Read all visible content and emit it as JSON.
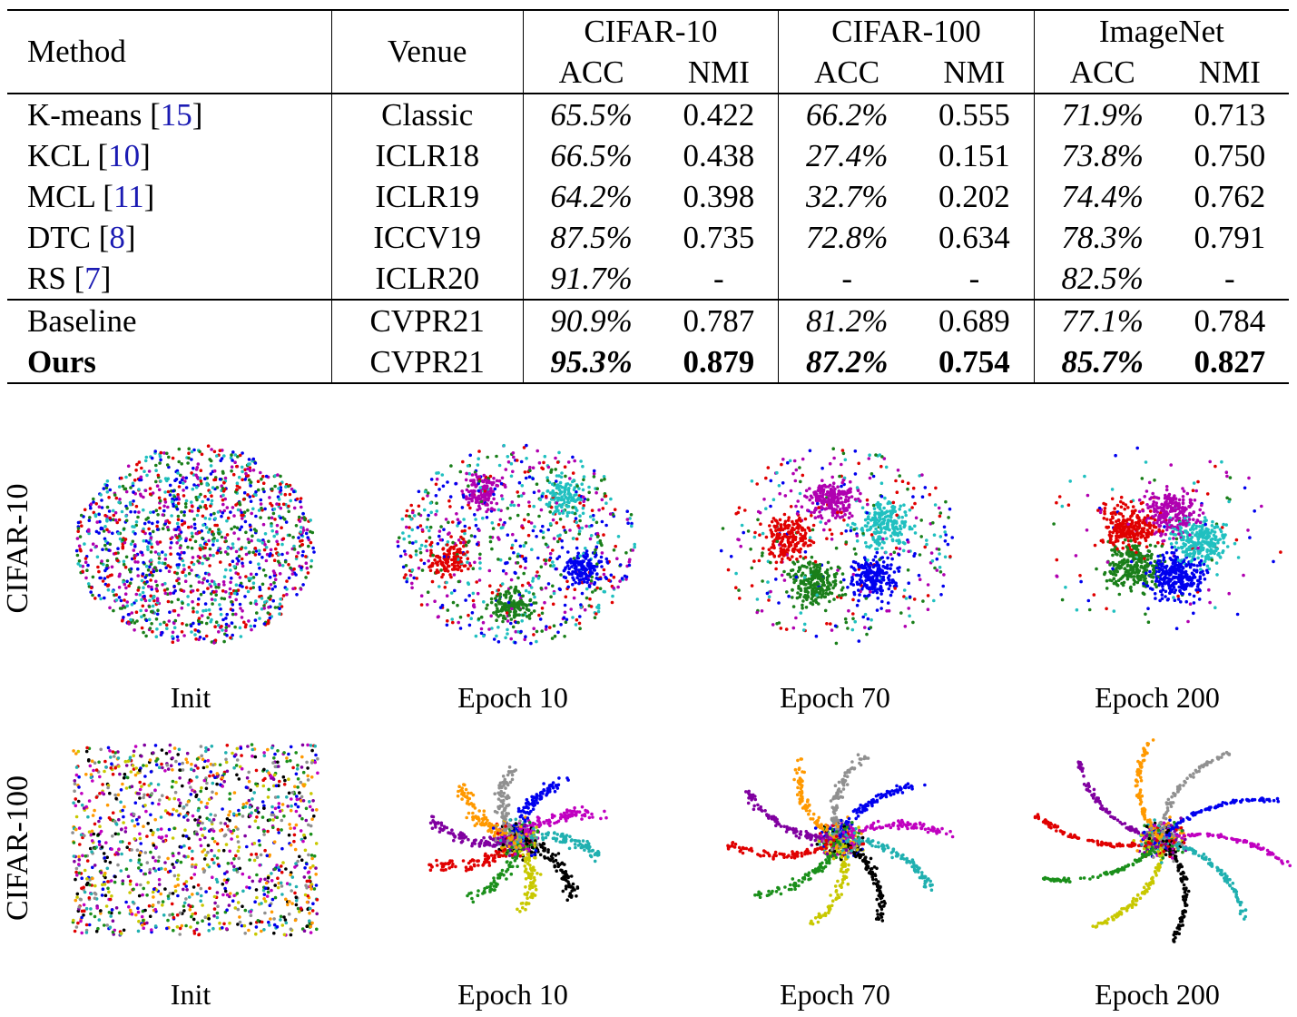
{
  "table": {
    "headers": {
      "method": "Method",
      "venue": "Venue",
      "datasets": [
        "CIFAR-10",
        "CIFAR-100",
        "ImageNet"
      ],
      "metrics": [
        "ACC",
        "NMI",
        "ACC",
        "NMI",
        "ACC",
        "NMI"
      ]
    },
    "rows": [
      {
        "name": "K-means",
        "cite": "15",
        "venue": "Classic",
        "values": [
          "65.5%",
          "0.422",
          "66.2%",
          "0.555",
          "71.9%",
          "0.713"
        ]
      },
      {
        "name": "KCL",
        "cite": "10",
        "venue": "ICLR18",
        "values": [
          "66.5%",
          "0.438",
          "27.4%",
          "0.151",
          "73.8%",
          "0.750"
        ]
      },
      {
        "name": "MCL",
        "cite": "11",
        "venue": "ICLR19",
        "values": [
          "64.2%",
          "0.398",
          "32.7%",
          "0.202",
          "74.4%",
          "0.762"
        ]
      },
      {
        "name": "DTC",
        "cite": "8",
        "venue": "ICCV19",
        "values": [
          "87.5%",
          "0.735",
          "72.8%",
          "0.634",
          "78.3%",
          "0.791"
        ]
      },
      {
        "name": "RS",
        "cite": "7",
        "venue": "ICLR20",
        "values": [
          "91.7%",
          "-",
          "-",
          "-",
          "82.5%",
          "-"
        ]
      },
      {
        "name": "Baseline",
        "cite": "",
        "venue": "CVPR21",
        "values": [
          "90.9%",
          "0.787",
          "81.2%",
          "0.689",
          "77.1%",
          "0.784"
        ]
      },
      {
        "name": "Ours",
        "cite": "",
        "venue": "CVPR21",
        "values": [
          "95.3%",
          "0.879",
          "87.2%",
          "0.754",
          "85.7%",
          "0.827"
        ]
      }
    ]
  },
  "figure": {
    "row_labels": [
      "CIFAR-10",
      "CIFAR-100"
    ],
    "captions": [
      "Init",
      "Epoch 10",
      "Epoch 70",
      "Epoch 200"
    ],
    "cifar10_colors": [
      "#0000ee",
      "#1a7f1a",
      "#e00000",
      "#b000b0",
      "#20c0c0"
    ],
    "cifar100_colors": [
      "#000000",
      "#c8c800",
      "#1a8f1a",
      "#e00000",
      "#8000a0",
      "#ff9900",
      "#909090",
      "#0000ee",
      "#c000c0",
      "#20b0b0"
    ]
  }
}
